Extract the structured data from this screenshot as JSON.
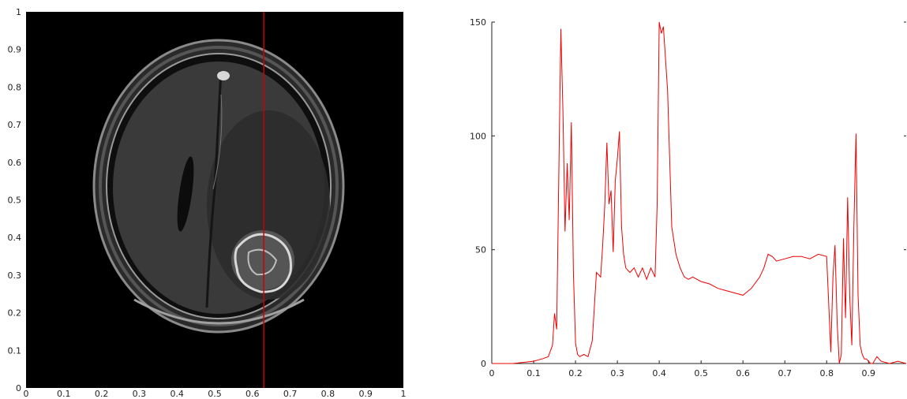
{
  "colors": {
    "profile_line": "#cc0000",
    "image_background": "#000000",
    "axis": "#222222"
  },
  "chart_data": [
    {
      "type": "image",
      "content": "axial brain MRI slice",
      "xlim": [
        0,
        1
      ],
      "ylim": [
        0,
        1
      ],
      "x_ticks": [
        "0",
        "0.1",
        "0.2",
        "0.3",
        "0.4",
        "0.5",
        "0.6",
        "0.7",
        "0.8",
        "0.9",
        "1"
      ],
      "y_ticks": [
        "0",
        "0.1",
        "0.2",
        "0.3",
        "0.4",
        "0.5",
        "0.6",
        "0.7",
        "0.8",
        "0.9",
        "1"
      ],
      "profile_line_x": 0.63
    },
    {
      "type": "line",
      "xlim": [
        0,
        0.99
      ],
      "ylim": [
        0,
        150
      ],
      "x_ticks": [
        "0",
        "0.1",
        "0.2",
        "0.3",
        "0.4",
        "0.5",
        "0.6",
        "0.7",
        "0.8",
        "0.9"
      ],
      "y_ticks": [
        "0",
        "50",
        "100",
        "150"
      ],
      "series": [
        {
          "x": [
            0,
            0.05,
            0.1,
            0.12,
            0.135,
            0.145,
            0.15,
            0.155,
            0.16,
            0.165,
            0.17,
            0.175,
            0.18,
            0.185,
            0.19,
            0.195,
            0.2,
            0.205,
            0.21,
            0.22,
            0.23,
            0.24,
            0.25,
            0.26,
            0.265,
            0.27,
            0.275,
            0.28,
            0.285,
            0.29,
            0.295,
            0.3,
            0.305,
            0.31,
            0.315,
            0.32,
            0.33,
            0.34,
            0.35,
            0.36,
            0.37,
            0.38,
            0.39,
            0.395,
            0.4,
            0.405,
            0.41,
            0.42,
            0.43,
            0.44,
            0.45,
            0.46,
            0.47,
            0.48,
            0.5,
            0.52,
            0.54,
            0.56,
            0.58,
            0.6,
            0.62,
            0.64,
            0.65,
            0.66,
            0.67,
            0.68,
            0.7,
            0.72,
            0.74,
            0.76,
            0.78,
            0.8,
            0.81,
            0.815,
            0.82,
            0.825,
            0.83,
            0.835,
            0.84,
            0.845,
            0.85,
            0.855,
            0.86,
            0.865,
            0.87,
            0.875,
            0.88,
            0.885,
            0.89,
            0.895,
            0.9,
            0.905,
            0.91,
            0.92,
            0.93,
            0.95,
            0.97,
            0.99
          ],
          "y": [
            0,
            0,
            1,
            2,
            3,
            8,
            22,
            15,
            80,
            147,
            110,
            58,
            88,
            63,
            106,
            40,
            9,
            4,
            3,
            4,
            3,
            10,
            40,
            38,
            52,
            70,
            97,
            70,
            76,
            49,
            80,
            90,
            102,
            60,
            48,
            42,
            40,
            42,
            38,
            42,
            37,
            42,
            38,
            70,
            150,
            145,
            148,
            120,
            60,
            48,
            42,
            38,
            37,
            38,
            36,
            35,
            33,
            32,
            31,
            30,
            33,
            38,
            42,
            48,
            47,
            45,
            46,
            47,
            47,
            46,
            48,
            47,
            5,
            38,
            52,
            18,
            0,
            4,
            55,
            20,
            73,
            30,
            8,
            60,
            101,
            30,
            8,
            4,
            2,
            2,
            1,
            0,
            0,
            3,
            1,
            0,
            1,
            0
          ]
        }
      ]
    }
  ]
}
